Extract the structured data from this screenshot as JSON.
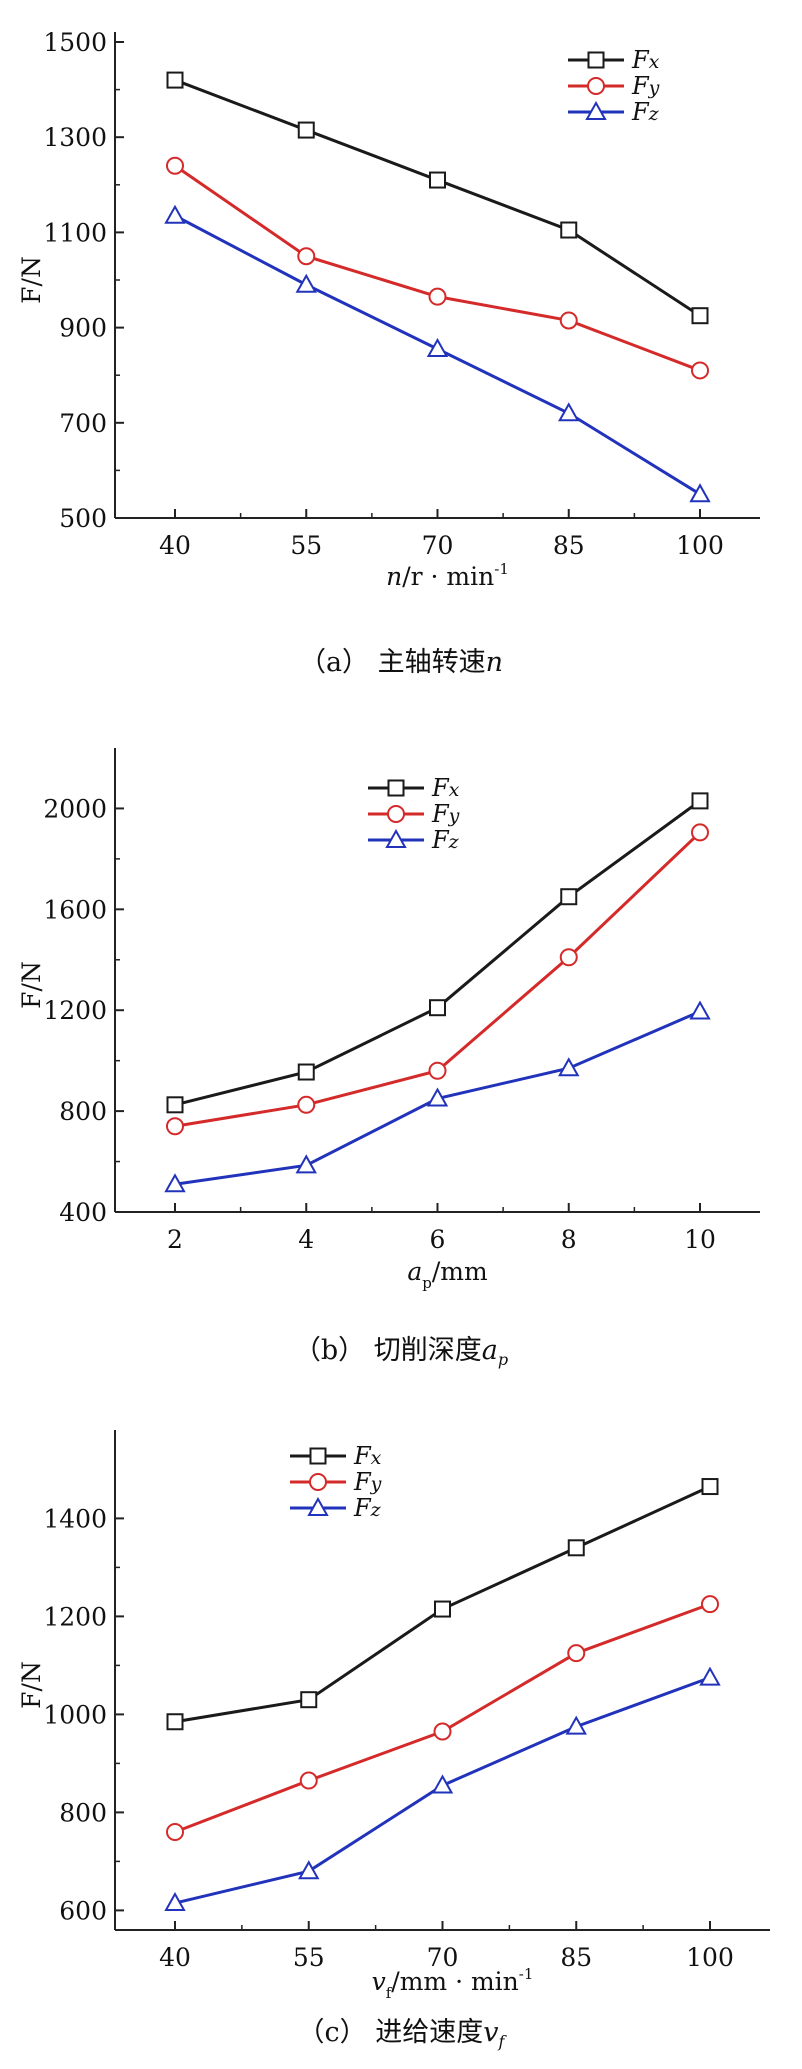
{
  "chart_data": [
    {
      "type": "line",
      "id": "a",
      "categories": [
        "40",
        "55",
        "70",
        "85",
        "100"
      ],
      "series": [
        {
          "name": "Fx",
          "values": [
            1420,
            1315,
            1210,
            1105,
            925
          ]
        },
        {
          "name": "Fy",
          "values": [
            1240,
            1050,
            965,
            915,
            810
          ]
        },
        {
          "name": "Fz",
          "values": [
            1135,
            990,
            855,
            720,
            550
          ]
        }
      ],
      "ylabel": "F/N",
      "xlabel": {
        "main": "n",
        "rest": "/r · min",
        "exp": "-1",
        "sub": ""
      },
      "ylim": [
        500,
        1500
      ],
      "yticks": [
        500,
        700,
        900,
        1100,
        1300,
        1500
      ],
      "legend": "top-right",
      "caption": {
        "prefix": "（a）  主轴转速",
        "var": "n",
        "sub": ""
      }
    },
    {
      "type": "line",
      "id": "b",
      "categories": [
        "2",
        "4",
        "6",
        "8",
        "10"
      ],
      "series": [
        {
          "name": "Fx",
          "values": [
            825,
            955,
            1210,
            1650,
            2030
          ]
        },
        {
          "name": "Fy",
          "values": [
            740,
            825,
            960,
            1410,
            1905
          ]
        },
        {
          "name": "Fz",
          "values": [
            510,
            585,
            850,
            970,
            1195
          ]
        }
      ],
      "ylabel": "F/N",
      "xlabel": {
        "main": "a",
        "sub": "p",
        "rest": "/mm",
        "exp": ""
      },
      "ylim": [
        400,
        2200
      ],
      "yticks": [
        400,
        800,
        1200,
        1600,
        2000
      ],
      "legend": "top-center",
      "caption": {
        "prefix": "（b）  切削深度",
        "var": "a",
        "sub": "p"
      }
    },
    {
      "type": "line",
      "id": "c",
      "categories": [
        "40",
        "55",
        "70",
        "85",
        "100"
      ],
      "series": [
        {
          "name": "Fx",
          "values": [
            985,
            1030,
            1215,
            1340,
            1465
          ]
        },
        {
          "name": "Fy",
          "values": [
            760,
            865,
            965,
            1125,
            1225
          ]
        },
        {
          "name": "Fz",
          "values": [
            615,
            680,
            855,
            975,
            1075
          ]
        }
      ],
      "ylabel": "F/N",
      "xlabel": {
        "main": "v",
        "sub": "f",
        "rest": "/mm · min",
        "exp": "-1"
      },
      "ylim": [
        560,
        1560
      ],
      "yticks": [
        600,
        800,
        1000,
        1200,
        1400
      ],
      "legend": "top-left",
      "caption": {
        "prefix": "（c）  进给速度",
        "var": "v",
        "sub": "f"
      }
    }
  ],
  "colors": {
    "Fx": "#1a1a1a",
    "Fy": "#d42a2a",
    "Fz": "#2233bb"
  },
  "markers": {
    "Fx": "square",
    "Fy": "circle",
    "Fz": "triangle"
  }
}
